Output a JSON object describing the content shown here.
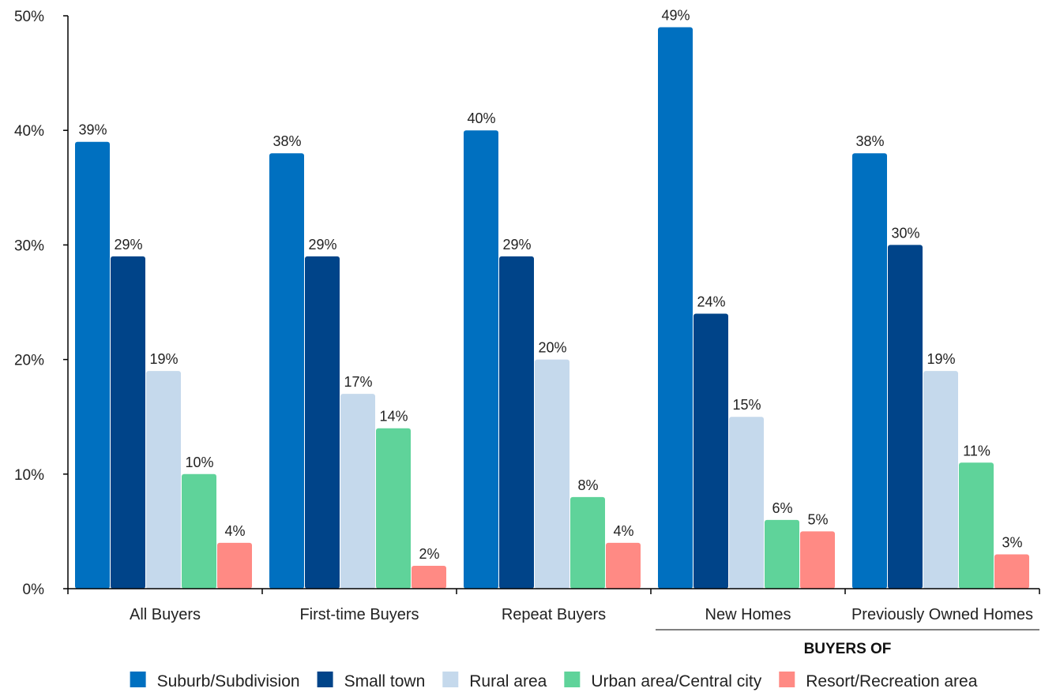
{
  "chart_data": {
    "type": "bar",
    "categories": [
      "All Buyers",
      "First-time Buyers",
      "Repeat Buyers",
      "New Homes",
      "Previously Owned Homes"
    ],
    "series": [
      {
        "name": "Suburb/Subdivision",
        "color": "#0070c0",
        "values": [
          39,
          38,
          40,
          49,
          38
        ]
      },
      {
        "name": "Small town",
        "color": "#004489",
        "values": [
          29,
          29,
          29,
          24,
          30
        ]
      },
      {
        "name": "Rural area",
        "color": "#c5d9ec",
        "values": [
          19,
          17,
          20,
          15,
          19
        ]
      },
      {
        "name": "Urban area/Central city",
        "color": "#5fd39a",
        "values": [
          10,
          14,
          8,
          6,
          11
        ]
      },
      {
        "name": "Resort/Recreation area",
        "color": "#ff8a84",
        "values": [
          4,
          2,
          4,
          5,
          3
        ]
      }
    ],
    "value_suffix": "%",
    "ylim": [
      0,
      50
    ],
    "yticks": [
      0,
      10,
      20,
      30,
      40,
      50
    ],
    "group_bracket": {
      "label": "BUYERS OF",
      "categories": [
        "New Homes",
        "Previously Owned Homes"
      ]
    },
    "grid": false,
    "legend_position": "bottom"
  }
}
